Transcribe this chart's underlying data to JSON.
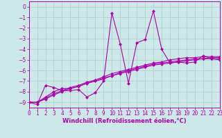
{
  "xlabel": "Windchill (Refroidissement éolien,°C)",
  "ylabel": "",
  "bg_color": "#cce8e8",
  "grid_color": "#aacccc",
  "line_color": "#aa00aa",
  "xmin": 0,
  "xmax": 23,
  "ymin": -9.5,
  "ymax": 0.5,
  "yticks": [
    0,
    -1,
    -2,
    -3,
    -4,
    -5,
    -6,
    -7,
    -8,
    -9
  ],
  "xticks": [
    0,
    1,
    2,
    3,
    4,
    5,
    6,
    7,
    8,
    9,
    10,
    11,
    12,
    13,
    14,
    15,
    16,
    17,
    18,
    19,
    20,
    21,
    22,
    23
  ],
  "series1_x": [
    0,
    1,
    2,
    3,
    4,
    5,
    6,
    7,
    8,
    9,
    10,
    11,
    12,
    13,
    14,
    15,
    16,
    17,
    18,
    19,
    20,
    21,
    22,
    23
  ],
  "series1_y": [
    -9.0,
    -9.2,
    -7.4,
    -7.6,
    -7.9,
    -7.9,
    -7.8,
    -8.5,
    -8.1,
    -7.0,
    -0.6,
    -3.5,
    -7.2,
    -3.4,
    -3.1,
    -0.4,
    -4.0,
    -5.3,
    -5.2,
    -5.3,
    -5.2,
    -4.6,
    -4.9,
    -5.0
  ],
  "series2_x": [
    0,
    1,
    2,
    3,
    4,
    5,
    6,
    7,
    8,
    9,
    10,
    11,
    12,
    13,
    14,
    15,
    16,
    17,
    18,
    19,
    20,
    21,
    22,
    23
  ],
  "series2_y": [
    -9.0,
    -9.0,
    -8.5,
    -8.0,
    -7.7,
    -7.7,
    -7.5,
    -7.2,
    -7.0,
    -6.8,
    -6.5,
    -6.3,
    -6.1,
    -5.9,
    -5.7,
    -5.5,
    -5.4,
    -5.3,
    -5.2,
    -5.1,
    -5.0,
    -4.9,
    -4.9,
    -4.9
  ],
  "series3_x": [
    0,
    1,
    2,
    3,
    4,
    5,
    6,
    7,
    8,
    9,
    10,
    11,
    12,
    13,
    14,
    15,
    16,
    17,
    18,
    19,
    20,
    21,
    22,
    23
  ],
  "series3_y": [
    -9.0,
    -9.0,
    -8.7,
    -8.3,
    -8.0,
    -7.7,
    -7.5,
    -7.2,
    -7.0,
    -6.7,
    -6.5,
    -6.2,
    -6.0,
    -5.8,
    -5.6,
    -5.4,
    -5.3,
    -5.2,
    -5.1,
    -5.0,
    -4.9,
    -4.9,
    -4.8,
    -4.8
  ],
  "series4_x": [
    0,
    1,
    2,
    3,
    4,
    5,
    6,
    7,
    8,
    9,
    10,
    11,
    12,
    13,
    14,
    15,
    16,
    17,
    18,
    19,
    20,
    21,
    22,
    23
  ],
  "series4_y": [
    -9.0,
    -9.0,
    -8.6,
    -8.2,
    -7.9,
    -7.6,
    -7.4,
    -7.1,
    -6.9,
    -6.6,
    -6.3,
    -6.1,
    -5.9,
    -5.7,
    -5.5,
    -5.3,
    -5.2,
    -5.0,
    -4.9,
    -4.8,
    -4.8,
    -4.7,
    -4.7,
    -4.7
  ],
  "tick_fontsize": 5.5,
  "xlabel_fontsize": 6.0,
  "marker_size": 2.5,
  "line_width": 0.8
}
